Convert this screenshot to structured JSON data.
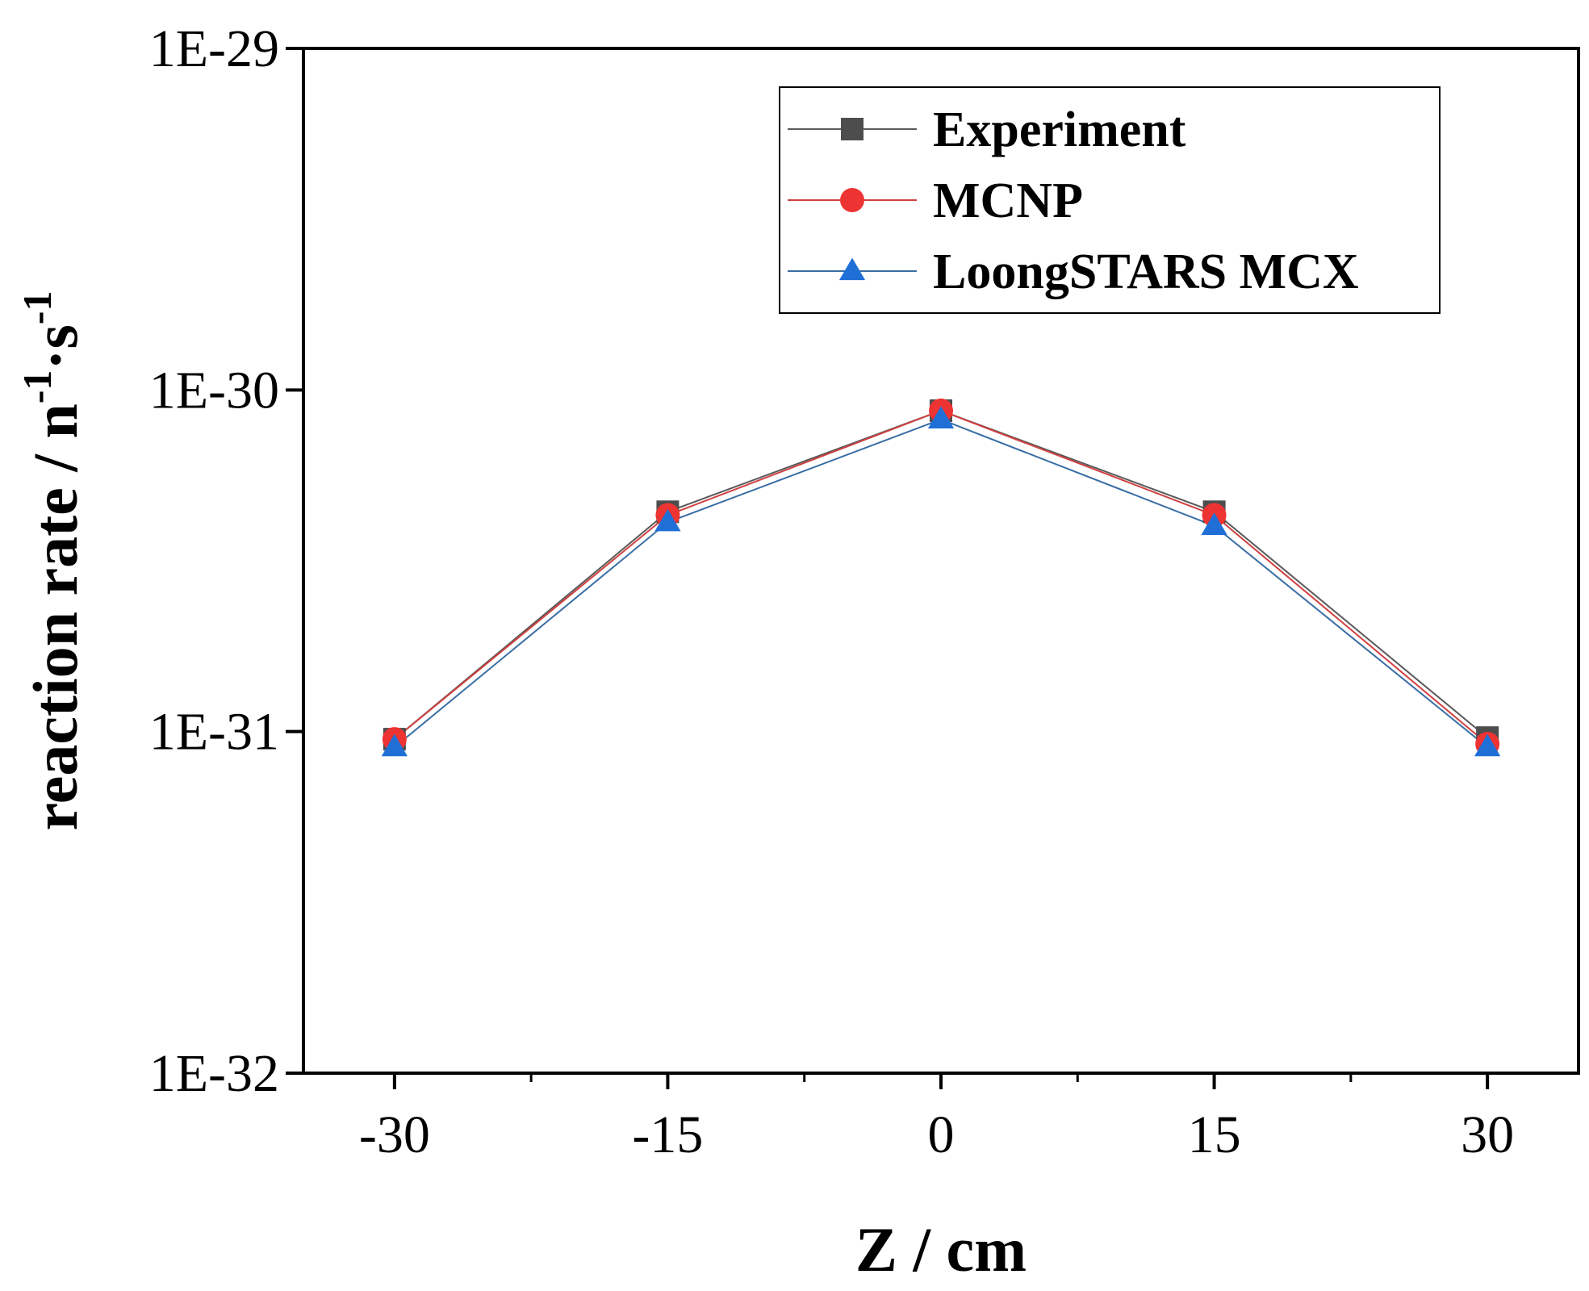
{
  "chart_data": {
    "type": "line",
    "title": "",
    "xlabel": "Z / cm",
    "ylabel": {
      "main": "reaction rate / n",
      "sup1": "-1",
      "mid": "·s",
      "sup2": "-1"
    },
    "yscale": "log",
    "xlim": [
      -35,
      35
    ],
    "ylim": [
      1e-32,
      1e-29
    ],
    "x_ticks": [
      -30,
      -15,
      0,
      15,
      30
    ],
    "x_tick_labels": [
      "-30",
      "-15",
      "0",
      "15",
      "30"
    ],
    "x_minor_ticks": [
      -22.5,
      -7.5,
      7.5,
      22.5
    ],
    "y_ticks": [
      1e-32,
      1e-31,
      1e-30,
      1e-29
    ],
    "y_tick_labels": [
      "1E-32",
      "1E-31",
      "1E-30",
      "1E-29"
    ],
    "grid": false,
    "legend_position": "top-right",
    "x": [
      -30,
      -15,
      0,
      15,
      30
    ],
    "series": [
      {
        "name": "Experiment",
        "marker": "square",
        "color": "#4d4d4d",
        "line_color": "#5a5a5a",
        "values": [
          9.5e-32,
          4.4e-31,
          8.7e-31,
          4.4e-31,
          9.6e-32
        ]
      },
      {
        "name": "MCNP",
        "marker": "circle",
        "color": "#ee3333",
        "line_color": "#d04040",
        "values": [
          9.5e-32,
          4.3e-31,
          8.7e-31,
          4.3e-31,
          9.2e-32
        ]
      },
      {
        "name": "LoongSTARS MCX",
        "marker": "triangle",
        "color": "#1f6fd6",
        "line_color": "#3a6ea5",
        "values": [
          9e-32,
          4.1e-31,
          8.2e-31,
          4e-31,
          9e-32
        ]
      }
    ]
  }
}
